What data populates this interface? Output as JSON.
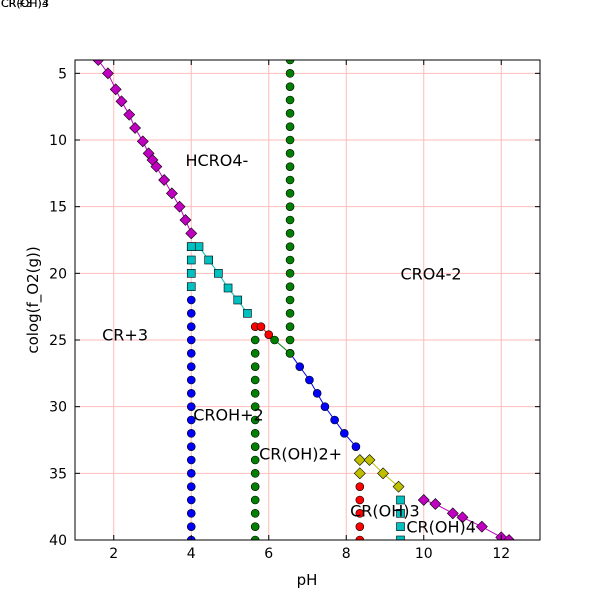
{
  "chart_data": {
    "type": "scatter",
    "title": "",
    "xlabel": "pH",
    "ylabel": "colog(f_O2(g))",
    "xlim": [
      1,
      13
    ],
    "ylim": [
      4,
      40
    ],
    "y_inverted": true,
    "grid": true,
    "grid_color": "#ffbbbb",
    "xticks": [
      "2",
      "4",
      "6",
      "8",
      "10",
      "12"
    ],
    "yticks": [
      "5",
      "10",
      "15",
      "20",
      "25",
      "30",
      "35",
      "40"
    ],
    "overlapping_labels": [
      "CR(OH)3",
      "CR(OH)4",
      "CR+3"
    ],
    "region_labels": [
      {
        "text": "HCRO4-",
        "x": 3.85,
        "y": 11.5
      },
      {
        "text": "CRO4-2",
        "x": 9.4,
        "y": 20.0
      },
      {
        "text": "CR+3",
        "x": 1.7,
        "y": 24.6
      },
      {
        "text": "CROH+2",
        "x": 4.05,
        "y": 30.6
      },
      {
        "text": "CR(OH)2+",
        "x": 5.75,
        "y": 33.5
      },
      {
        "text": "CR(OH)3",
        "x": 8.1,
        "y": 37.8
      },
      {
        "text": "CR(OH)4",
        "x": 9.55,
        "y": 39.0
      }
    ],
    "series": [
      {
        "color": "#bf00bf",
        "marker": "diamond",
        "connected": true,
        "x": [
          1.6,
          1.85,
          2.05,
          2.2,
          2.4,
          2.55,
          2.75,
          2.9,
          3.0,
          3.1,
          3.3,
          3.5,
          3.7,
          3.85,
          4.0
        ],
        "y": [
          4.0,
          5.0,
          6.2,
          7.1,
          8.1,
          9.1,
          10.1,
          11.0,
          11.5,
          12.0,
          13.0,
          14.0,
          15.0,
          16.0,
          17.0
        ]
      },
      {
        "color": "#bf00bf",
        "marker": "diamond",
        "connected": true,
        "x": [
          10.0,
          10.3,
          10.75,
          11.0,
          11.5,
          12.0,
          12.2
        ],
        "y": [
          37.0,
          37.3,
          38.0,
          38.3,
          39.0,
          39.8,
          40.0
        ]
      },
      {
        "color": "#00bfbf",
        "marker": "square",
        "connected": true,
        "x": [
          4.0,
          4.2,
          4.45,
          4.7,
          4.95,
          5.2,
          5.45
        ],
        "y": [
          18.0,
          18.0,
          19.0,
          20.0,
          21.1,
          22.0,
          23.0
        ]
      },
      {
        "color": "#00bfbf",
        "marker": "square",
        "connected": false,
        "x": [
          4.0,
          4.0,
          4.0,
          4.0
        ],
        "y": [
          19.0,
          20.0,
          21.0,
          18.0
        ]
      },
      {
        "color": "#00bfbf",
        "marker": "square",
        "connected": false,
        "x": [
          9.4,
          9.4,
          9.4,
          9.4
        ],
        "y": [
          37.0,
          38.0,
          39.0,
          40.0
        ]
      },
      {
        "color": "#0000ff",
        "marker": "circle",
        "connected": false,
        "x": [
          4.0,
          4.0,
          4.0,
          4.0,
          4.0,
          4.0,
          4.0,
          4.0,
          4.0,
          4.0,
          4.0,
          4.0,
          4.0,
          4.0,
          4.0,
          4.0,
          4.0,
          4.0,
          4.0
        ],
        "y": [
          22.0,
          23.0,
          24.0,
          25.0,
          26.0,
          27.0,
          28.0,
          29.0,
          30.0,
          31.0,
          32.0,
          33.0,
          34.0,
          35.0,
          36.0,
          37.0,
          38.0,
          39.0,
          40.0
        ]
      },
      {
        "color": "#0000ff",
        "marker": "circle",
        "connected": true,
        "x": [
          6.55,
          6.8,
          7.05,
          7.25,
          7.45,
          7.7,
          7.95,
          8.25
        ],
        "y": [
          26.0,
          27.0,
          28.0,
          29.0,
          30.0,
          31.0,
          32.0,
          33.0
        ]
      },
      {
        "color": "#007f00",
        "marker": "circle",
        "connected": false,
        "x": [
          6.55,
          6.55,
          6.55,
          6.55,
          6.55,
          6.55,
          6.55,
          6.55,
          6.55,
          6.55,
          6.55,
          6.55,
          6.55,
          6.55,
          6.55,
          6.55,
          6.55,
          6.55,
          6.55,
          6.55,
          6.55,
          6.55,
          6.55
        ],
        "y": [
          4.0,
          5.0,
          6.0,
          7.0,
          8.0,
          9.0,
          10.0,
          11.0,
          12.0,
          13.0,
          14.0,
          15.0,
          16.0,
          17.0,
          18.0,
          19.0,
          20.0,
          21.0,
          22.0,
          23.0,
          24.0,
          25.0,
          26.0
        ]
      },
      {
        "color": "#007f00",
        "marker": "circle",
        "connected": true,
        "x": [
          6.55,
          6.15
        ],
        "y": [
          26.0,
          25.0
        ]
      },
      {
        "color": "#007f00",
        "marker": "circle",
        "connected": false,
        "x": [
          5.65,
          5.65,
          5.65,
          5.65,
          5.65,
          5.65,
          5.65,
          5.65,
          5.65,
          5.65,
          5.65,
          5.65,
          5.65,
          5.65,
          5.65,
          5.65
        ],
        "y": [
          25.0,
          26.0,
          27.0,
          28.0,
          29.0,
          30.0,
          31.0,
          32.0,
          33.0,
          34.0,
          35.0,
          36.0,
          37.0,
          38.0,
          39.0,
          40.0
        ]
      },
      {
        "color": "#ff0000",
        "marker": "circle",
        "connected": true,
        "x": [
          5.65,
          5.8,
          6.0
        ],
        "y": [
          24.0,
          24.0,
          24.6
        ]
      },
      {
        "color": "#ff0000",
        "marker": "circle",
        "connected": false,
        "x": [
          8.35,
          8.35,
          8.35,
          8.35,
          8.35
        ],
        "y": [
          36.0,
          37.0,
          38.0,
          39.0,
          40.0
        ]
      },
      {
        "color": "#bfbf00",
        "marker": "diamond",
        "connected": true,
        "x": [
          8.35,
          8.6,
          8.95,
          9.35
        ],
        "y": [
          34.0,
          34.0,
          35.0,
          36.0
        ]
      },
      {
        "color": "#bfbf00",
        "marker": "diamond",
        "connected": false,
        "x": [
          8.35
        ],
        "y": [
          35.0
        ]
      }
    ]
  }
}
